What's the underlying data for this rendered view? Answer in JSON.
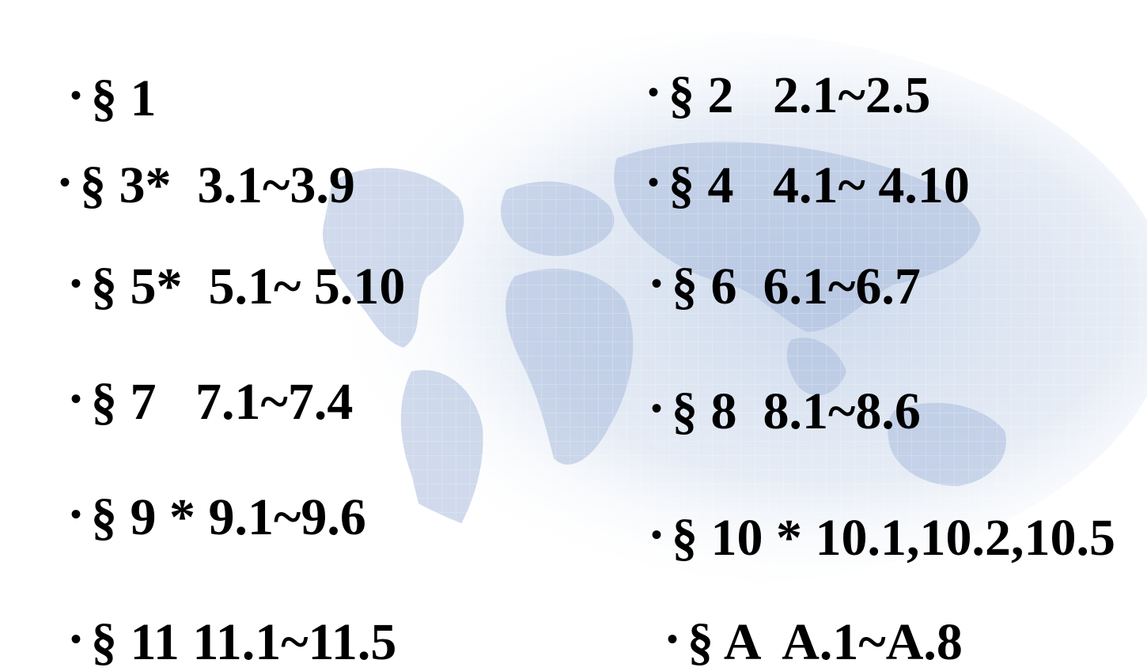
{
  "bullet_glyph": "•",
  "left_column": [
    {
      "text": "§ 1"
    },
    {
      "text": "§ 3*  3.1~3.9"
    },
    {
      "text": "§ 5*  5.1~ 5.10"
    },
    {
      "text": "§ 7   7.1~7.4"
    },
    {
      "text": "§ 9 * 9.1~9.6"
    },
    {
      "text": "§ 11 11.1~11.5"
    }
  ],
  "right_column": [
    {
      "text": "§ 2   2.1~2.5"
    },
    {
      "text": "§ 4   4.1~ 4.10"
    },
    {
      "text": "§ 6  6.1~6.7"
    },
    {
      "text": "§ 8  8.1~8.6"
    },
    {
      "text": "§ 10 * 10.1,10.2,10.5"
    },
    {
      "text": "§ A  A.1~A.8"
    }
  ],
  "colors": {
    "text": "#000000",
    "background": "#ffffff",
    "map_tint": "#c6d3e8"
  },
  "background_graphic": "world-map-watermark"
}
